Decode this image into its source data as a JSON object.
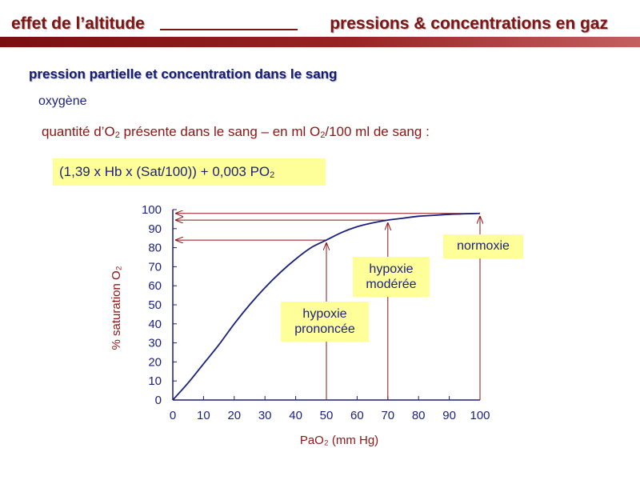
{
  "header": {
    "left": "effet de l’altitude",
    "right": "pressions & concentrations en gaz"
  },
  "subtitle": "pression partielle et concentration dans le sang",
  "section": "oxygène",
  "quantity_line": {
    "part1": "quantité d’O",
    "sub1": "2",
    "part2": " présente dans le sang – en ml O",
    "sub2": "2",
    "part3": "/100 ml de sang :"
  },
  "formula": {
    "main": "(1,39 x Hb x (Sat/100)) + 0,003 PO",
    "sub": "2"
  },
  "labels": {
    "normoxie": "normoxie",
    "moderee_line1": "hypoxie",
    "moderee_line2": "modérée",
    "prononcee_line1": "hypoxie",
    "prononcee_line2": "prononcée"
  },
  "colors": {
    "title": "#7a1616",
    "curve": "#1a1f7c",
    "arrows": "#8c1414",
    "label_bg": "#ffff99"
  },
  "chart_data": {
    "type": "line",
    "xlabel": "PaO₂ (mm Hg)",
    "ylabel": "% saturation O₂",
    "xlim": [
      0,
      100
    ],
    "ylim": [
      0,
      100
    ],
    "x_ticks": [
      "0",
      "10",
      "20",
      "30",
      "40",
      "50",
      "60",
      "70",
      "80",
      "90",
      "100"
    ],
    "y_ticks": [
      "0",
      "10",
      "20",
      "30",
      "40",
      "50",
      "60",
      "70",
      "80",
      "90",
      "100"
    ],
    "series": [
      {
        "x": [
          0,
          5,
          10,
          15,
          20,
          25,
          30,
          35,
          40,
          45,
          50,
          55,
          60,
          65,
          70,
          75,
          80,
          85,
          90,
          95,
          100
        ],
        "y": [
          0,
          9,
          19,
          29,
          40,
          50,
          59,
          67,
          74,
          80,
          84,
          88,
          91,
          93,
          94.5,
          95.5,
          96.5,
          97,
          97.5,
          97.8,
          98
        ]
      }
    ],
    "markers": [
      {
        "x": 50,
        "y": 84
      },
      {
        "x": 70,
        "y": 94.5
      },
      {
        "x": 100,
        "y": 98
      }
    ]
  }
}
